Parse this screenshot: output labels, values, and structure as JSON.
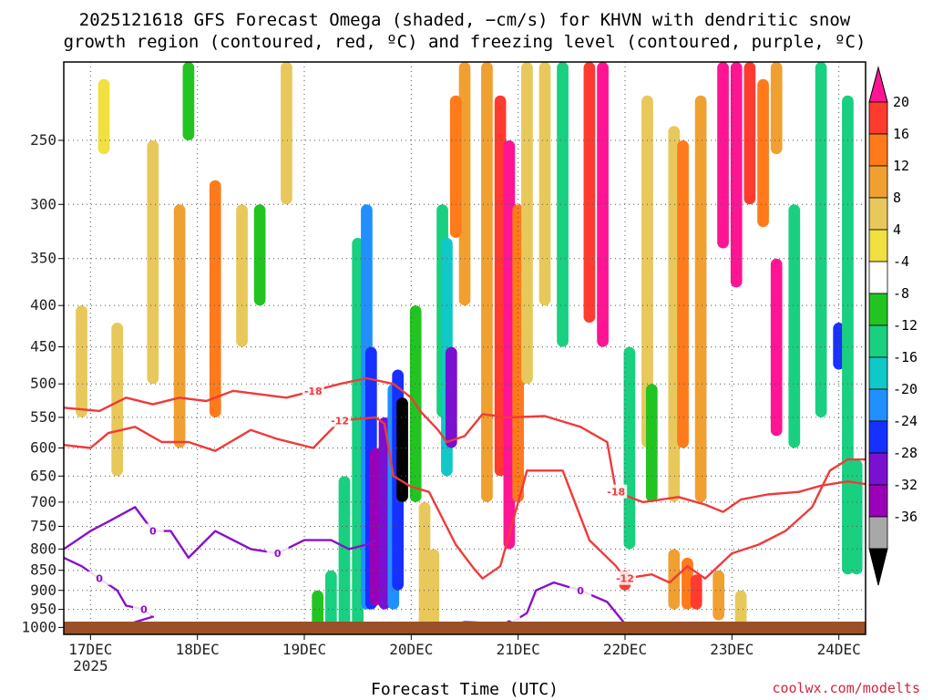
{
  "chart_data": {
    "type": "heatmap",
    "title_line1": "2025121618 GFS Forecast Omega (shaded, −cm/s) for KHVN with dendritic snow",
    "title_line2": "growth region (contoured, red, ºC) and freezing level (contoured, purple, ºC)",
    "xlabel": "Forecast Time (UTC)",
    "credit": "coolwx.com/modelts",
    "x_ticks": [
      {
        "label": "17DEC",
        "hour": 6,
        "sublabel": "2025"
      },
      {
        "label": "18DEC",
        "hour": 30
      },
      {
        "label": "19DEC",
        "hour": 54
      },
      {
        "label": "20DEC",
        "hour": 78
      },
      {
        "label": "21DEC",
        "hour": 102
      },
      {
        "label": "22DEC",
        "hour": 126
      },
      {
        "label": "23DEC",
        "hour": 150
      },
      {
        "label": "24DEC",
        "hour": 174
      }
    ],
    "x_range_hours": [
      0,
      180
    ],
    "y_ticks": [
      250,
      300,
      350,
      400,
      450,
      500,
      550,
      600,
      650,
      700,
      750,
      800,
      850,
      900,
      950,
      1000
    ],
    "y_range_hpa": [
      200,
      1020
    ],
    "y_scale": "log-pressure",
    "colorbar": {
      "labels": [
        20,
        16,
        12,
        8,
        4,
        -4,
        -8,
        -12,
        -16,
        -20,
        -24,
        -28,
        -32,
        -36
      ],
      "colors": [
        "#ff1493",
        "#ff3b30",
        "#ff7a1a",
        "#f0a030",
        "#e8c85a",
        "#f0e040",
        "#ffffff",
        "#22c422",
        "#18d080",
        "#10c8c8",
        "#2090ff",
        "#1830ff",
        "#7a10d0",
        "#9a00b8",
        "#a8a8a8",
        "#000000"
      ]
    },
    "shaded_cells": [
      {
        "h": 118,
        "p1": 200,
        "p2": 420,
        "v": 16
      },
      {
        "h": 121,
        "p1": 200,
        "p2": 450,
        "v": 20
      },
      {
        "h": 148,
        "p1": 200,
        "p2": 340,
        "v": 24
      },
      {
        "h": 151,
        "p1": 200,
        "p2": 380,
        "v": 24
      },
      {
        "h": 154,
        "p1": 200,
        "p2": 300,
        "v": 16
      },
      {
        "h": 157,
        "p1": 210,
        "p2": 320,
        "v": 12
      },
      {
        "h": 160,
        "p1": 200,
        "p2": 260,
        "v": 8
      },
      {
        "h": 143,
        "p1": 220,
        "p2": 700,
        "v": 8
      },
      {
        "h": 137,
        "p1": 240,
        "p2": 700,
        "v": 6
      },
      {
        "h": 139,
        "p1": 250,
        "p2": 600,
        "v": 12
      },
      {
        "h": 131,
        "p1": 220,
        "p2": 600,
        "v": 6
      },
      {
        "h": 95,
        "p1": 200,
        "p2": 700,
        "v": 8
      },
      {
        "h": 98,
        "p1": 220,
        "p2": 650,
        "v": 16
      },
      {
        "h": 100,
        "p1": 250,
        "p2": 800,
        "v": 20
      },
      {
        "h": 102,
        "p1": 300,
        "p2": 700,
        "v": 12
      },
      {
        "h": 104,
        "p1": 200,
        "p2": 500,
        "v": 6
      },
      {
        "h": 90,
        "p1": 200,
        "p2": 400,
        "v": 8
      },
      {
        "h": 88,
        "p1": 220,
        "p2": 330,
        "v": 12
      },
      {
        "h": 85,
        "p1": 300,
        "p2": 550,
        "v": -8
      },
      {
        "h": 86,
        "p1": 330,
        "p2": 650,
        "v": -12
      },
      {
        "h": 87,
        "p1": 450,
        "p2": 600,
        "v": -24
      },
      {
        "h": 108,
        "p1": 200,
        "p2": 400,
        "v": 6
      },
      {
        "h": 112,
        "p1": 200,
        "p2": 450,
        "v": -8
      },
      {
        "h": 66,
        "p1": 330,
        "p2": 1000,
        "v": -8
      },
      {
        "h": 68,
        "p1": 300,
        "p2": 950,
        "v": -16
      },
      {
        "h": 69,
        "p1": 450,
        "p2": 950,
        "v": -20
      },
      {
        "h": 70,
        "p1": 600,
        "p2": 940,
        "v": -28
      },
      {
        "h": 72,
        "p1": 550,
        "p2": 950,
        "v": -24
      },
      {
        "h": 74,
        "p1": 500,
        "p2": 950,
        "v": -16
      },
      {
        "h": 75,
        "p1": 480,
        "p2": 900,
        "v": -20
      },
      {
        "h": 76,
        "p1": 520,
        "p2": 700,
        "v": -36
      },
      {
        "h": 63,
        "p1": 650,
        "p2": 1000,
        "v": -8
      },
      {
        "h": 60,
        "p1": 850,
        "p2": 1000,
        "v": -8
      },
      {
        "h": 57,
        "p1": 900,
        "p2": 1000,
        "v": -4
      },
      {
        "h": 79,
        "p1": 400,
        "p2": 700,
        "v": -6
      },
      {
        "h": 81,
        "p1": 700,
        "p2": 1000,
        "v": 6
      },
      {
        "h": 83,
        "p1": 800,
        "p2": 1000,
        "v": 6
      },
      {
        "h": 20,
        "p1": 250,
        "p2": 500,
        "v": 6
      },
      {
        "h": 26,
        "p1": 300,
        "p2": 600,
        "v": 8
      },
      {
        "h": 34,
        "p1": 280,
        "p2": 550,
        "v": 12
      },
      {
        "h": 40,
        "p1": 300,
        "p2": 450,
        "v": 6
      },
      {
        "h": 4,
        "p1": 400,
        "p2": 550,
        "v": 6
      },
      {
        "h": 12,
        "p1": 420,
        "p2": 650,
        "v": 6
      },
      {
        "h": 9,
        "p1": 210,
        "p2": 260,
        "v": 4
      },
      {
        "h": 28,
        "p1": 200,
        "p2": 250,
        "v": -6
      },
      {
        "h": 44,
        "p1": 300,
        "p2": 400,
        "v": -6
      },
      {
        "h": 50,
        "p1": 200,
        "p2": 300,
        "v": 6
      },
      {
        "h": 126,
        "p1": 850,
        "p2": 900,
        "v": 16
      },
      {
        "h": 137,
        "p1": 800,
        "p2": 950,
        "v": 8
      },
      {
        "h": 140,
        "p1": 820,
        "p2": 950,
        "v": 12
      },
      {
        "h": 142,
        "p1": 860,
        "p2": 950,
        "v": 16
      },
      {
        "h": 147,
        "p1": 850,
        "p2": 980,
        "v": 8
      },
      {
        "h": 152,
        "p1": 900,
        "p2": 1000,
        "v": 6
      },
      {
        "h": 127,
        "p1": 450,
        "p2": 800,
        "v": -8
      },
      {
        "h": 132,
        "p1": 500,
        "p2": 700,
        "v": -6
      },
      {
        "h": 164,
        "p1": 300,
        "p2": 600,
        "v": -8
      },
      {
        "h": 170,
        "p1": 200,
        "p2": 550,
        "v": -8
      },
      {
        "h": 174,
        "p1": 420,
        "p2": 480,
        "v": -20
      },
      {
        "h": 176,
        "p1": 220,
        "p2": 860,
        "v": -8
      },
      {
        "h": 178,
        "p1": 620,
        "p2": 860,
        "v": -8
      },
      {
        "h": 160,
        "p1": 350,
        "p2": 580,
        "v": 20
      }
    ],
    "contours": [
      {
        "name": "dgz-minus-18",
        "level": -18,
        "color": "red",
        "label": "-18",
        "points": [
          [
            0,
            535
          ],
          [
            8,
            540
          ],
          [
            14,
            520
          ],
          [
            20,
            530
          ],
          [
            26,
            520
          ],
          [
            32,
            525
          ],
          [
            38,
            510
          ],
          [
            44,
            515
          ],
          [
            50,
            520
          ],
          [
            56,
            510
          ],
          [
            62,
            500
          ],
          [
            68,
            492
          ],
          [
            74,
            500
          ],
          [
            78,
            520
          ],
          [
            80,
            540
          ],
          [
            84,
            570
          ],
          [
            86,
            590
          ],
          [
            90,
            580
          ],
          [
            94,
            545
          ],
          [
            100,
            550
          ],
          [
            108,
            548
          ],
          [
            116,
            565
          ],
          [
            122,
            590
          ],
          [
            124,
            680
          ],
          [
            130,
            700
          ],
          [
            138,
            690
          ],
          [
            144,
            705
          ],
          [
            148,
            720
          ],
          [
            152,
            695
          ],
          [
            158,
            685
          ],
          [
            165,
            680
          ],
          [
            170,
            668
          ],
          [
            176,
            660
          ],
          [
            180,
            665
          ]
        ]
      },
      {
        "name": "dgz-minus-12",
        "level": -12,
        "color": "red",
        "label": "-12",
        "points": [
          [
            0,
            595
          ],
          [
            6,
            600
          ],
          [
            10,
            575
          ],
          [
            16,
            565
          ],
          [
            22,
            590
          ],
          [
            28,
            590
          ],
          [
            34,
            605
          ],
          [
            42,
            570
          ],
          [
            48,
            585
          ],
          [
            56,
            600
          ],
          [
            62,
            555
          ],
          [
            70,
            550
          ],
          [
            72,
            560
          ],
          [
            74,
            650
          ],
          [
            78,
            670
          ],
          [
            82,
            680
          ],
          [
            88,
            790
          ],
          [
            92,
            845
          ],
          [
            94,
            870
          ],
          [
            98,
            840
          ],
          [
            104,
            640
          ],
          [
            112,
            640
          ],
          [
            118,
            780
          ],
          [
            124,
            840
          ],
          [
            126,
            870
          ],
          [
            132,
            860
          ],
          [
            136,
            880
          ],
          [
            140,
            840
          ],
          [
            144,
            870
          ],
          [
            150,
            810
          ],
          [
            156,
            790
          ],
          [
            162,
            760
          ],
          [
            168,
            710
          ],
          [
            172,
            640
          ],
          [
            176,
            620
          ],
          [
            180,
            620
          ]
        ]
      },
      {
        "name": "freezing-level-0",
        "level": 0,
        "color": "purple",
        "label": "0",
        "points": [
          [
            0,
            800
          ],
          [
            6,
            760
          ],
          [
            10,
            740
          ],
          [
            16,
            710
          ],
          [
            20,
            760
          ],
          [
            24,
            760
          ],
          [
            28,
            820
          ],
          [
            34,
            760
          ],
          [
            42,
            800
          ],
          [
            48,
            810
          ],
          [
            54,
            780
          ],
          [
            60,
            780
          ],
          [
            64,
            800
          ],
          [
            68,
            790
          ],
          [
            70,
            780
          ]
        ]
      },
      {
        "name": "freezing-level-0-b",
        "level": 0,
        "color": "purple",
        "label": "0",
        "points": [
          [
            0,
            820
          ],
          [
            4,
            840
          ],
          [
            8,
            870
          ],
          [
            12,
            900
          ],
          [
            14,
            940
          ],
          [
            18,
            950
          ],
          [
            20,
            970
          ],
          [
            16,
            985
          ],
          [
            14,
            1005
          ]
        ]
      },
      {
        "name": "freezing-level-0-c",
        "level": 0,
        "color": "purple",
        "label": "0",
        "points": [
          [
            80,
            1010
          ],
          [
            90,
            985
          ],
          [
            100,
            990
          ],
          [
            104,
            960
          ],
          [
            106,
            900
          ],
          [
            110,
            880
          ],
          [
            116,
            900
          ],
          [
            122,
            930
          ],
          [
            126,
            990
          ],
          [
            130,
            1010
          ]
        ]
      }
    ]
  }
}
